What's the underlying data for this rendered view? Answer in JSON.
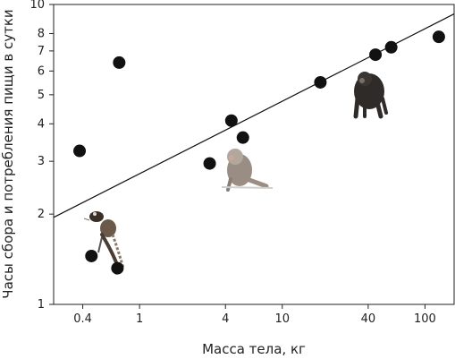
{
  "chart_data": {
    "type": "scatter",
    "title": "",
    "xlabel": "Масса тела, кг",
    "ylabel": "Часы сбора и потребления пищи в сутки",
    "xscale": "log",
    "yscale": "log",
    "xlim": [
      0.25,
      160
    ],
    "ylim": [
      1,
      10
    ],
    "grid": false,
    "xticks": [
      {
        "value": 0.4,
        "label": "0.4"
      },
      {
        "value": 1,
        "label": "1"
      },
      {
        "value": 4,
        "label": "4"
      },
      {
        "value": 10,
        "label": "10"
      },
      {
        "value": 40,
        "label": "40"
      },
      {
        "value": 100,
        "label": "100"
      }
    ],
    "yticks": [
      {
        "value": 1,
        "label": "1"
      },
      {
        "value": 2,
        "label": "2"
      },
      {
        "value": 3,
        "label": "3"
      },
      {
        "value": 4,
        "label": "4"
      },
      {
        "value": 5,
        "label": "5"
      },
      {
        "value": 6,
        "label": "6"
      },
      {
        "value": 7,
        "label": "7"
      },
      {
        "value": 8,
        "label": "8"
      },
      {
        "value": 10,
        "label": "10"
      }
    ],
    "points": [
      {
        "x": 0.38,
        "y": 3.25
      },
      {
        "x": 0.46,
        "y": 1.45
      },
      {
        "x": 0.7,
        "y": 1.32
      },
      {
        "x": 0.72,
        "y": 6.4
      },
      {
        "x": 3.1,
        "y": 2.95
      },
      {
        "x": 4.4,
        "y": 4.1
      },
      {
        "x": 5.3,
        "y": 3.6
      },
      {
        "x": 18.5,
        "y": 5.5
      },
      {
        "x": 45,
        "y": 6.8
      },
      {
        "x": 58,
        "y": 7.2
      },
      {
        "x": 125,
        "y": 7.8
      }
    ],
    "trendline": {
      "x": [
        0.25,
        160
      ],
      "y": [
        1.95,
        9.3
      ]
    },
    "illustrations": [
      "marmoset-image",
      "macaque-image",
      "chimpanzee-image"
    ]
  }
}
